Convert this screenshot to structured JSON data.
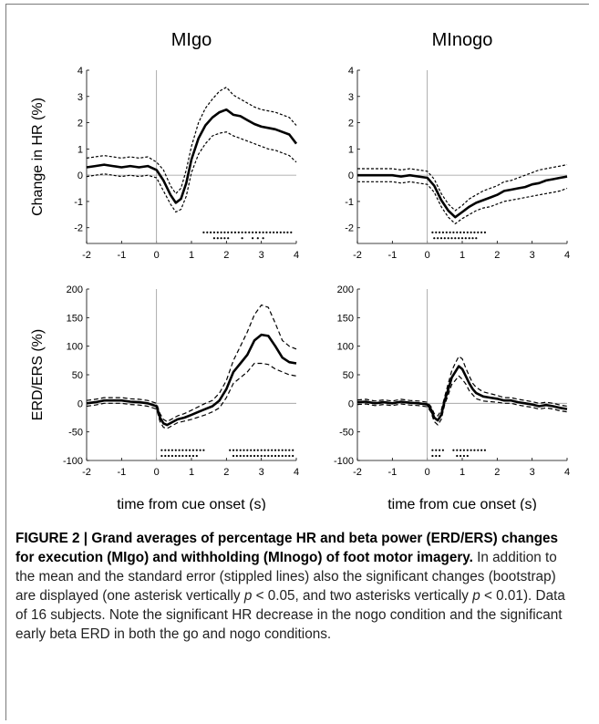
{
  "chart_data": [
    {
      "type": "line",
      "title": "MIgo",
      "xlabel": "",
      "ylabel": "Change in HR (%)",
      "xlim": [
        -2,
        4
      ],
      "ylim": [
        -2.6,
        4
      ],
      "xticks": [
        "-2",
        "-1",
        "0",
        "1",
        "2",
        "3",
        "4"
      ],
      "yticks": [
        "-2",
        "-1",
        "0",
        "1",
        "2",
        "3",
        "4"
      ],
      "x": [
        -2,
        -1.75,
        -1.5,
        -1.25,
        -1,
        -0.75,
        -0.5,
        -0.25,
        0,
        0.2,
        0.4,
        0.55,
        0.7,
        0.85,
        1,
        1.2,
        1.4,
        1.6,
        1.8,
        2,
        2.2,
        2.4,
        2.6,
        2.8,
        3,
        3.2,
        3.4,
        3.6,
        3.8,
        4
      ],
      "series": [
        {
          "values": [
            0.3,
            0.35,
            0.4,
            0.35,
            0.3,
            0.35,
            0.3,
            0.35,
            0.2,
            -0.2,
            -0.75,
            -1.05,
            -0.9,
            -0.3,
            0.6,
            1.4,
            1.9,
            2.2,
            2.4,
            2.5,
            2.3,
            2.25,
            2.1,
            1.95,
            1.85,
            1.8,
            1.75,
            1.65,
            1.55,
            1.2
          ]
        },
        {
          "values": [
            0.65,
            0.7,
            0.75,
            0.7,
            0.65,
            0.7,
            0.65,
            0.7,
            0.5,
            0.2,
            -0.4,
            -0.7,
            -0.5,
            0.2,
            1.1,
            2.0,
            2.55,
            2.9,
            3.2,
            3.35,
            3.05,
            2.9,
            2.75,
            2.6,
            2.5,
            2.45,
            2.4,
            2.3,
            2.2,
            1.9
          ]
        },
        {
          "values": [
            -0.05,
            0.0,
            0.05,
            0.0,
            -0.05,
            0.0,
            -0.05,
            0.0,
            -0.1,
            -0.6,
            -1.1,
            -1.4,
            -1.3,
            -0.8,
            0.1,
            0.8,
            1.2,
            1.5,
            1.6,
            1.65,
            1.5,
            1.4,
            1.3,
            1.2,
            1.1,
            1.0,
            0.95,
            0.85,
            0.75,
            0.5
          ]
        }
      ],
      "sig_rows": [
        {
          "y": -2.18,
          "xs": [
            1.35,
            1.45,
            1.55,
            1.65,
            1.75,
            1.85,
            1.95,
            2.05,
            2.15,
            2.25,
            2.35,
            2.45,
            2.55,
            2.65,
            2.75,
            2.85,
            2.95,
            3.05,
            3.15,
            3.25,
            3.35,
            3.45,
            3.55,
            3.65,
            3.75,
            3.85
          ]
        },
        {
          "y": -2.4,
          "xs": [
            1.65,
            1.75,
            1.85,
            1.95,
            2.05,
            2.45,
            2.75,
            2.9,
            3.05
          ]
        }
      ]
    },
    {
      "type": "line",
      "title": "MInogo",
      "xlabel": "",
      "ylabel": "",
      "xlim": [
        -2,
        4
      ],
      "ylim": [
        -2.6,
        4
      ],
      "xticks": [
        "-2",
        "-1",
        "0",
        "1",
        "2",
        "3",
        "4"
      ],
      "yticks": [
        "-2",
        "-1",
        "0",
        "1",
        "2",
        "3",
        "4"
      ],
      "x": [
        -2,
        -1.75,
        -1.5,
        -1.25,
        -1,
        -0.75,
        -0.5,
        -0.25,
        0,
        0.2,
        0.4,
        0.6,
        0.8,
        1,
        1.2,
        1.4,
        1.6,
        1.8,
        2,
        2.2,
        2.4,
        2.6,
        2.8,
        3,
        3.2,
        3.4,
        3.6,
        3.8,
        4
      ],
      "series": [
        {
          "values": [
            0,
            0,
            0,
            0,
            0,
            -0.05,
            0,
            -0.05,
            -0.1,
            -0.4,
            -0.95,
            -1.35,
            -1.6,
            -1.4,
            -1.2,
            -1.05,
            -0.95,
            -0.85,
            -0.75,
            -0.6,
            -0.55,
            -0.5,
            -0.45,
            -0.35,
            -0.3,
            -0.2,
            -0.15,
            -0.1,
            -0.05
          ]
        },
        {
          "values": [
            0.25,
            0.25,
            0.25,
            0.25,
            0.25,
            0.2,
            0.25,
            0.2,
            0.15,
            -0.15,
            -0.7,
            -1.1,
            -1.35,
            -1.15,
            -0.9,
            -0.75,
            -0.6,
            -0.5,
            -0.4,
            -0.25,
            -0.2,
            -0.1,
            0,
            0.1,
            0.2,
            0.25,
            0.3,
            0.35,
            0.4
          ]
        },
        {
          "values": [
            -0.25,
            -0.25,
            -0.25,
            -0.25,
            -0.25,
            -0.3,
            -0.25,
            -0.3,
            -0.35,
            -0.65,
            -1.2,
            -1.6,
            -1.85,
            -1.65,
            -1.5,
            -1.35,
            -1.25,
            -1.2,
            -1.1,
            -1.0,
            -0.95,
            -0.9,
            -0.85,
            -0.8,
            -0.75,
            -0.7,
            -0.65,
            -0.6,
            -0.5
          ]
        }
      ],
      "sig_rows": [
        {
          "y": -2.18,
          "xs": [
            0.15,
            0.25,
            0.35,
            0.45,
            0.55,
            0.65,
            0.75,
            0.85,
            0.95,
            1.05,
            1.15,
            1.25,
            1.35,
            1.45,
            1.55,
            1.65
          ]
        },
        {
          "y": -2.4,
          "xs": [
            0.2,
            0.3,
            0.4,
            0.5,
            0.6,
            0.7,
            0.8,
            0.9,
            1.0,
            1.1,
            1.2,
            1.3,
            1.4
          ]
        }
      ]
    },
    {
      "type": "line",
      "title": "",
      "xlabel": "time from cue onset (s)",
      "ylabel": "ERD/ERS (%)",
      "xlim": [
        -2,
        4
      ],
      "ylim": [
        -100,
        200
      ],
      "xticks": [
        "-2",
        "-1",
        "0",
        "1",
        "2",
        "3",
        "4"
      ],
      "yticks": [
        "-100",
        "-50",
        "0",
        "50",
        "100",
        "150",
        "200"
      ],
      "x": [
        -2,
        -1.75,
        -1.5,
        -1.25,
        -1,
        -0.75,
        -0.5,
        -0.25,
        0,
        0.1,
        0.2,
        0.3,
        0.45,
        0.6,
        0.8,
        1,
        1.2,
        1.4,
        1.6,
        1.8,
        2,
        2.2,
        2.4,
        2.6,
        2.8,
        3,
        3.2,
        3.4,
        3.6,
        3.8,
        4
      ],
      "series": [
        {
          "values": [
            0,
            2,
            5,
            5,
            5,
            3,
            2,
            0,
            -5,
            -25,
            -35,
            -38,
            -33,
            -28,
            -25,
            -20,
            -15,
            -10,
            -5,
            5,
            25,
            55,
            70,
            85,
            110,
            120,
            118,
            100,
            80,
            72,
            70
          ]
        },
        {
          "values": [
            5,
            7,
            10,
            10,
            10,
            8,
            7,
            5,
            0,
            -18,
            -28,
            -32,
            -27,
            -22,
            -18,
            -12,
            -6,
            0,
            5,
            18,
            40,
            75,
            100,
            125,
            155,
            172,
            168,
            140,
            110,
            100,
            95
          ]
        },
        {
          "values": [
            -5,
            -3,
            0,
            0,
            0,
            -2,
            -3,
            -5,
            -10,
            -32,
            -42,
            -44,
            -39,
            -34,
            -31,
            -28,
            -24,
            -20,
            -15,
            -8,
            10,
            35,
            45,
            55,
            70,
            70,
            68,
            60,
            55,
            50,
            48
          ]
        }
      ],
      "sig_rows": [
        {
          "y": -82,
          "xs": [
            0.15,
            0.25,
            0.35,
            0.45,
            0.55,
            0.65,
            0.75,
            0.85,
            0.95,
            1.05,
            1.15,
            1.25,
            1.35,
            2.1,
            2.2,
            2.3,
            2.4,
            2.5,
            2.6,
            2.7,
            2.8,
            2.9,
            3.0,
            3.1,
            3.2,
            3.3,
            3.4,
            3.5,
            3.6,
            3.7,
            3.8,
            3.9
          ]
        },
        {
          "y": -92,
          "xs": [
            0.15,
            0.25,
            0.35,
            0.45,
            0.55,
            0.65,
            0.75,
            0.85,
            0.95,
            1.05,
            1.15,
            2.2,
            2.3,
            2.4,
            2.5,
            2.6,
            2.7,
            2.8,
            2.9,
            3.0,
            3.1,
            3.2,
            3.3,
            3.4,
            3.5,
            3.6,
            3.7,
            3.8,
            3.9
          ]
        }
      ]
    },
    {
      "type": "line",
      "title": "",
      "xlabel": "time from cue onset (s)",
      "ylabel": "",
      "xlim": [
        -2,
        4
      ],
      "ylim": [
        -100,
        200
      ],
      "xticks": [
        "-2",
        "-1",
        "0",
        "1",
        "2",
        "3",
        "4"
      ],
      "yticks": [
        "-100",
        "-50",
        "0",
        "50",
        "100",
        "150",
        "200"
      ],
      "x": [
        -2,
        -1.75,
        -1.5,
        -1.25,
        -1,
        -0.75,
        -0.5,
        -0.25,
        0,
        0.1,
        0.2,
        0.3,
        0.4,
        0.5,
        0.6,
        0.7,
        0.8,
        0.9,
        1.0,
        1.1,
        1.2,
        1.3,
        1.4,
        1.6,
        1.8,
        2,
        2.2,
        2.4,
        2.6,
        2.8,
        3,
        3.2,
        3.4,
        3.6,
        3.8,
        4
      ],
      "series": [
        {
          "values": [
            2,
            3,
            0,
            2,
            0,
            3,
            1,
            0,
            -2,
            -10,
            -25,
            -30,
            -20,
            5,
            25,
            45,
            55,
            65,
            60,
            48,
            35,
            25,
            18,
            12,
            10,
            8,
            5,
            5,
            2,
            0,
            -2,
            -5,
            -3,
            -5,
            -8,
            -10
          ]
        },
        {
          "values": [
            6,
            7,
            4,
            6,
            4,
            7,
            5,
            4,
            2,
            -5,
            -18,
            -22,
            -12,
            12,
            35,
            57,
            70,
            82,
            78,
            62,
            48,
            35,
            28,
            20,
            17,
            14,
            10,
            10,
            7,
            5,
            3,
            0,
            2,
            0,
            -3,
            -5
          ]
        },
        {
          "values": [
            -2,
            -1,
            -4,
            -2,
            -4,
            -1,
            -3,
            -4,
            -6,
            -15,
            -32,
            -38,
            -28,
            -2,
            15,
            33,
            40,
            48,
            42,
            34,
            22,
            15,
            8,
            4,
            3,
            2,
            0,
            0,
            -3,
            -5,
            -7,
            -10,
            -8,
            -10,
            -13,
            -15
          ]
        }
      ],
      "sig_rows": [
        {
          "y": -82,
          "xs": [
            0.15,
            0.25,
            0.35,
            0.45,
            0.75,
            0.85,
            0.95,
            1.05,
            1.15,
            1.25,
            1.35,
            1.45,
            1.55,
            1.65
          ]
        },
        {
          "y": -92,
          "xs": [
            0.15,
            0.25,
            0.35,
            0.85,
            0.95,
            1.05,
            1.15
          ]
        }
      ]
    }
  ],
  "caption": {
    "title": "FIGURE 2 | Grand averages of percentage HR and beta power (ERD/ERS) changes for execution (MIgo) and withholding (MInogo) of foot motor imagery.",
    "body_1": " In addition to the mean and the standard error (stippled lines) also the significant changes (bootstrap) are displayed (one asterisk vertically ",
    "p1": "p",
    "body_2": " < 0.05, and two asterisks vertically ",
    "p2": "p",
    "body_3": " < 0.01). Data of 16 subjects. Note the significant HR decrease in the nogo condition and the significant early beta ERD in both the go and nogo conditions."
  }
}
